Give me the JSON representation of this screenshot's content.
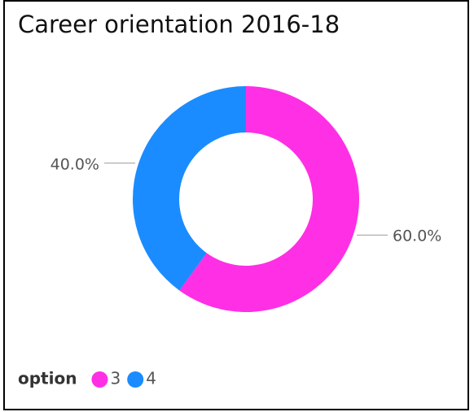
{
  "chart_data": {
    "type": "donut",
    "title": "Career orientation 2016-18",
    "legend_title": "option",
    "categories": [
      "3",
      "4"
    ],
    "values": [
      60,
      40
    ],
    "value_labels": [
      "60.0%",
      "40.0%"
    ],
    "colors": [
      "#ff2fe5",
      "#1a8cff"
    ],
    "legend": "bottom-left"
  }
}
